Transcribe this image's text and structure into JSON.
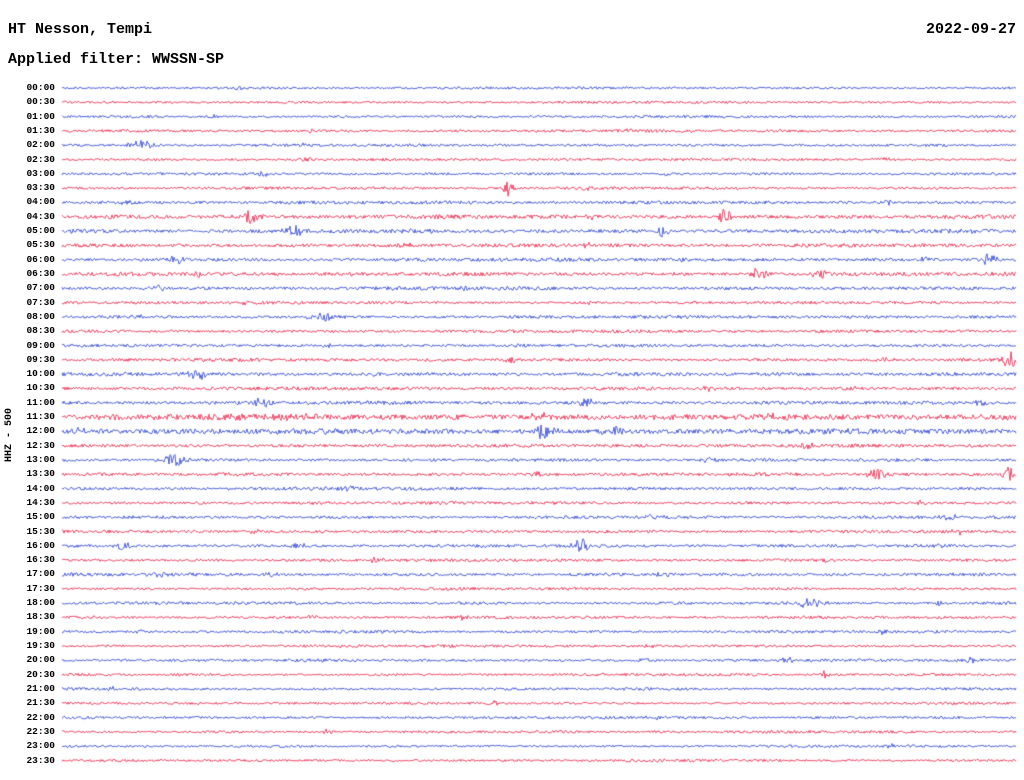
{
  "header": {
    "station": "HT Nesson, Tempi",
    "date": "2022-09-27",
    "filter": "Applied filter: WWSSN-SP"
  },
  "axis": {
    "left_label": "HHZ - 500"
  },
  "colors": {
    "blue": "#1b33cf",
    "red": "#e8143c",
    "text": "#000000",
    "background": "#ffffff"
  },
  "chart_data": {
    "type": "line",
    "title": "Helicorder seismogram, 48 half-hour traces, alternating blue/red",
    "xlabel": "",
    "ylabel": "HHZ - 500",
    "grid": false,
    "legend": "none",
    "rows": [
      {
        "time": "00:00",
        "color": "blue",
        "noise": 0.9,
        "events": [
          {
            "x": 0.185,
            "amp": 3,
            "w": 3
          }
        ]
      },
      {
        "time": "00:30",
        "color": "red",
        "noise": 0.9,
        "events": []
      },
      {
        "time": "01:00",
        "color": "blue",
        "noise": 0.95,
        "events": [
          {
            "x": 0.16,
            "amp": 1.8,
            "w": 4
          }
        ]
      },
      {
        "time": "01:30",
        "color": "red",
        "noise": 1.0,
        "events": [
          {
            "x": 0.26,
            "amp": 1.8,
            "w": 5
          },
          {
            "x": 0.59,
            "amp": 1.6,
            "w": 5
          }
        ]
      },
      {
        "time": "02:00",
        "color": "blue",
        "noise": 1.0,
        "events": [
          {
            "x": 0.083,
            "amp": 4.5,
            "w": 10
          },
          {
            "x": 0.255,
            "amp": 1.6,
            "w": 5
          }
        ]
      },
      {
        "time": "02:30",
        "color": "red",
        "noise": 1.0,
        "events": [
          {
            "x": 0.26,
            "amp": 2,
            "w": 6
          },
          {
            "x": 0.86,
            "amp": 2.2,
            "w": 6
          }
        ]
      },
      {
        "time": "03:00",
        "color": "blue",
        "noise": 1.0,
        "events": [
          {
            "x": 0.21,
            "amp": 2.6,
            "w": 5
          },
          {
            "x": 0.63,
            "amp": 1.8,
            "w": 5
          }
        ]
      },
      {
        "time": "03:30",
        "color": "red",
        "noise": 1.05,
        "events": [
          {
            "x": 0.468,
            "amp": 9,
            "w": 4
          },
          {
            "x": 0.55,
            "amp": 2,
            "w": 6
          }
        ]
      },
      {
        "time": "04:00",
        "color": "blue",
        "noise": 1.25,
        "events": [
          {
            "x": 0.07,
            "amp": 2,
            "w": 5
          },
          {
            "x": 0.865,
            "amp": 2.6,
            "w": 6
          }
        ]
      },
      {
        "time": "04:30",
        "color": "red",
        "noise": 1.5,
        "events": [
          {
            "x": 0.198,
            "amp": 8,
            "w": 6
          },
          {
            "x": 0.56,
            "amp": 3,
            "w": 6
          },
          {
            "x": 0.695,
            "amp": 7,
            "w": 6
          }
        ]
      },
      {
        "time": "05:00",
        "color": "blue",
        "noise": 1.5,
        "events": [
          {
            "x": 0.242,
            "amp": 6.5,
            "w": 6
          },
          {
            "x": 0.63,
            "amp": 5,
            "w": 6
          },
          {
            "x": 0.952,
            "amp": 3,
            "w": 5
          }
        ]
      },
      {
        "time": "05:30",
        "color": "red",
        "noise": 1.4,
        "events": [
          {
            "x": 0.36,
            "amp": 2.4,
            "w": 6
          },
          {
            "x": 0.55,
            "amp": 2,
            "w": 6
          }
        ]
      },
      {
        "time": "06:00",
        "color": "blue",
        "noise": 1.3,
        "events": [
          {
            "x": 0.12,
            "amp": 4,
            "w": 7
          },
          {
            "x": 0.655,
            "amp": 2.5,
            "w": 6
          },
          {
            "x": 0.905,
            "amp": 2.6,
            "w": 5
          },
          {
            "x": 0.972,
            "amp": 6,
            "w": 5
          }
        ]
      },
      {
        "time": "06:30",
        "color": "red",
        "noise": 1.4,
        "events": [
          {
            "x": 0.145,
            "amp": 4,
            "w": 5
          },
          {
            "x": 0.73,
            "amp": 6,
            "w": 6
          },
          {
            "x": 0.795,
            "amp": 4,
            "w": 7
          }
        ]
      },
      {
        "time": "07:00",
        "color": "blue",
        "noise": 1.3,
        "events": [
          {
            "x": 0.1,
            "amp": 2.4,
            "w": 5
          },
          {
            "x": 0.42,
            "amp": 2,
            "w": 5
          }
        ]
      },
      {
        "time": "07:30",
        "color": "red",
        "noise": 1.1,
        "events": [
          {
            "x": 0.19,
            "amp": 2.4,
            "w": 5
          },
          {
            "x": 0.55,
            "amp": 1.8,
            "w": 5
          }
        ]
      },
      {
        "time": "08:00",
        "color": "blue",
        "noise": 1.15,
        "events": [
          {
            "x": 0.275,
            "amp": 3.6,
            "w": 12
          },
          {
            "x": 0.08,
            "amp": 2,
            "w": 5
          }
        ]
      },
      {
        "time": "08:30",
        "color": "red",
        "noise": 1.15,
        "events": [
          {
            "x": 0.7,
            "amp": 2,
            "w": 5
          }
        ]
      },
      {
        "time": "09:00",
        "color": "blue",
        "noise": 1.1,
        "events": [
          {
            "x": 0.28,
            "amp": 2,
            "w": 5
          },
          {
            "x": 0.48,
            "amp": 2,
            "w": 5
          }
        ]
      },
      {
        "time": "09:30",
        "color": "red",
        "noise": 1.2,
        "events": [
          {
            "x": 0.47,
            "amp": 2.4,
            "w": 6
          },
          {
            "x": 0.86,
            "amp": 2.6,
            "w": 6
          },
          {
            "x": 0.993,
            "amp": 8,
            "w": 5
          }
        ]
      },
      {
        "time": "10:00",
        "color": "blue",
        "noise": 1.35,
        "events": [
          {
            "x": 0.142,
            "amp": 6,
            "w": 7
          },
          {
            "x": 0.33,
            "amp": 2,
            "w": 5
          }
        ]
      },
      {
        "time": "10:30",
        "color": "red",
        "noise": 1.25,
        "events": [
          {
            "x": 0.68,
            "amp": 2.6,
            "w": 6
          },
          {
            "x": 0.83,
            "amp": 2.6,
            "w": 6
          }
        ]
      },
      {
        "time": "11:00",
        "color": "blue",
        "noise": 1.35,
        "events": [
          {
            "x": 0.208,
            "amp": 6,
            "w": 6
          },
          {
            "x": 0.55,
            "amp": 5,
            "w": 6
          },
          {
            "x": 0.965,
            "amp": 3,
            "w": 5
          }
        ]
      },
      {
        "time": "11:30",
        "color": "red",
        "noise": 2.2,
        "events": [
          {
            "x": 0.25,
            "amp": 3,
            "w": 8
          },
          {
            "x": 0.5,
            "amp": 4,
            "w": 8
          },
          {
            "x": 0.75,
            "amp": 3,
            "w": 8
          }
        ]
      },
      {
        "time": "12:00",
        "color": "blue",
        "noise": 2.0,
        "events": [
          {
            "x": 0.02,
            "amp": 3,
            "w": 6
          },
          {
            "x": 0.505,
            "amp": 8,
            "w": 8
          },
          {
            "x": 0.575,
            "amp": 5,
            "w": 7
          }
        ]
      },
      {
        "time": "12:30",
        "color": "red",
        "noise": 1.25,
        "events": [
          {
            "x": 0.78,
            "amp": 3,
            "w": 7
          }
        ]
      },
      {
        "time": "13:00",
        "color": "blue",
        "noise": 1.15,
        "events": [
          {
            "x": 0.118,
            "amp": 7,
            "w": 8
          },
          {
            "x": 0.68,
            "amp": 2.4,
            "w": 6
          }
        ]
      },
      {
        "time": "13:30",
        "color": "red",
        "noise": 1.2,
        "events": [
          {
            "x": 0.5,
            "amp": 2.4,
            "w": 6
          },
          {
            "x": 0.855,
            "amp": 7,
            "w": 7
          },
          {
            "x": 0.993,
            "amp": 7,
            "w": 5
          }
        ]
      },
      {
        "time": "14:00",
        "color": "blue",
        "noise": 1.2,
        "events": [
          {
            "x": 0.3,
            "amp": 2,
            "w": 5
          }
        ]
      },
      {
        "time": "14:30",
        "color": "red",
        "noise": 1.1,
        "events": [
          {
            "x": 0.27,
            "amp": 2.4,
            "w": 6
          },
          {
            "x": 0.9,
            "amp": 2.4,
            "w": 6
          }
        ]
      },
      {
        "time": "15:00",
        "color": "blue",
        "noise": 1.15,
        "events": [
          {
            "x": 0.62,
            "amp": 3,
            "w": 6
          },
          {
            "x": 0.93,
            "amp": 2.4,
            "w": 6
          }
        ]
      },
      {
        "time": "15:30",
        "color": "red",
        "noise": 1.1,
        "events": [
          {
            "x": 0.2,
            "amp": 2,
            "w": 5
          },
          {
            "x": 0.94,
            "amp": 2.6,
            "w": 5
          }
        ]
      },
      {
        "time": "16:00",
        "color": "blue",
        "noise": 1.2,
        "events": [
          {
            "x": 0.065,
            "amp": 4,
            "w": 6
          },
          {
            "x": 0.25,
            "amp": 3,
            "w": 6
          },
          {
            "x": 0.545,
            "amp": 7,
            "w": 6
          },
          {
            "x": 0.92,
            "amp": 3,
            "w": 5
          }
        ]
      },
      {
        "time": "16:30",
        "color": "red",
        "noise": 1.1,
        "events": [
          {
            "x": 0.33,
            "amp": 2.4,
            "w": 6
          },
          {
            "x": 0.8,
            "amp": 2,
            "w": 5
          }
        ]
      },
      {
        "time": "17:00",
        "color": "blue",
        "noise": 1.2,
        "events": [
          {
            "x": 0.1,
            "amp": 2.4,
            "w": 6
          },
          {
            "x": 0.22,
            "amp": 2.4,
            "w": 6
          },
          {
            "x": 0.63,
            "amp": 2,
            "w": 5
          }
        ]
      },
      {
        "time": "17:30",
        "color": "red",
        "noise": 1.0,
        "events": [
          {
            "x": 0.53,
            "amp": 2,
            "w": 5
          }
        ]
      },
      {
        "time": "18:00",
        "color": "blue",
        "noise": 1.1,
        "events": [
          {
            "x": 0.785,
            "amp": 5,
            "w": 8
          },
          {
            "x": 0.92,
            "amp": 2.6,
            "w": 5
          }
        ]
      },
      {
        "time": "18:30",
        "color": "red",
        "noise": 1.05,
        "events": [
          {
            "x": 0.26,
            "amp": 2.4,
            "w": 6
          },
          {
            "x": 0.42,
            "amp": 2,
            "w": 5
          }
        ]
      },
      {
        "time": "19:00",
        "color": "blue",
        "noise": 1.05,
        "events": [
          {
            "x": 0.08,
            "amp": 2,
            "w": 5
          },
          {
            "x": 0.86,
            "amp": 2.4,
            "w": 5
          }
        ]
      },
      {
        "time": "19:30",
        "color": "red",
        "noise": 1.0,
        "events": [
          {
            "x": 0.3,
            "amp": 2,
            "w": 5
          },
          {
            "x": 0.62,
            "amp": 2,
            "w": 5
          }
        ]
      },
      {
        "time": "20:00",
        "color": "blue",
        "noise": 1.05,
        "events": [
          {
            "x": 0.61,
            "amp": 2.4,
            "w": 5
          },
          {
            "x": 0.76,
            "amp": 3,
            "w": 6
          },
          {
            "x": 0.955,
            "amp": 4,
            "w": 5
          }
        ]
      },
      {
        "time": "20:30",
        "color": "red",
        "noise": 1.0,
        "events": [
          {
            "x": 0.8,
            "amp": 4,
            "w": 4
          }
        ]
      },
      {
        "time": "21:00",
        "color": "blue",
        "noise": 1.0,
        "events": [
          {
            "x": 0.05,
            "amp": 2,
            "w": 5
          }
        ]
      },
      {
        "time": "21:30",
        "color": "red",
        "noise": 0.95,
        "events": [
          {
            "x": 0.455,
            "amp": 3,
            "w": 4
          }
        ]
      },
      {
        "time": "22:00",
        "color": "blue",
        "noise": 1.0,
        "events": [
          {
            "x": 0.26,
            "amp": 2,
            "w": 5
          },
          {
            "x": 0.62,
            "amp": 2.4,
            "w": 5
          }
        ]
      },
      {
        "time": "22:30",
        "color": "red",
        "noise": 1.0,
        "events": [
          {
            "x": 0.28,
            "amp": 3,
            "w": 5
          }
        ]
      },
      {
        "time": "23:00",
        "color": "blue",
        "noise": 0.95,
        "events": [
          {
            "x": 0.87,
            "amp": 2,
            "w": 5
          }
        ]
      },
      {
        "time": "23:30",
        "color": "red",
        "noise": 0.95,
        "events": []
      }
    ]
  }
}
